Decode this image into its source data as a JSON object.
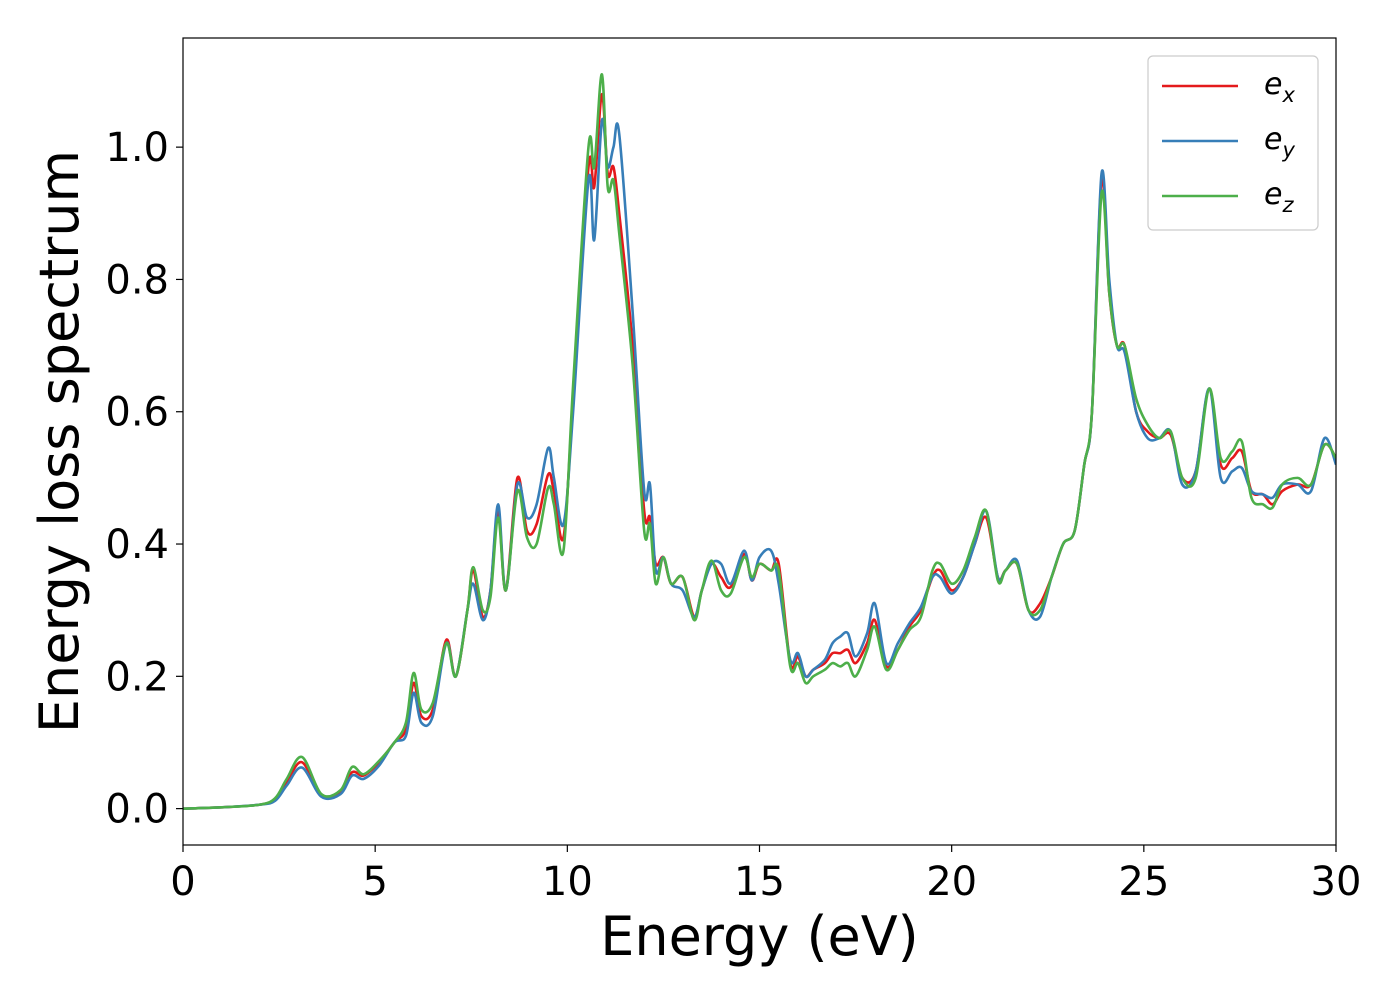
{
  "chart_data": {
    "type": "line",
    "title": "",
    "xlabel": "Energy (eV)",
    "ylabel": "Energy loss spectrum",
    "xlim": [
      0,
      30
    ],
    "ylim": [
      -0.055,
      1.165
    ],
    "xticks": [
      0,
      5,
      10,
      15,
      20,
      25,
      30
    ],
    "yticks": [
      0.0,
      0.2,
      0.4,
      0.6,
      0.8,
      1.0
    ],
    "xtick_labels": [
      "0",
      "5",
      "10",
      "15",
      "20",
      "25",
      "30"
    ],
    "ytick_labels": [
      "0.0",
      "0.2",
      "0.4",
      "0.6",
      "0.8",
      "1.0"
    ],
    "grid": false,
    "legend_position": "top-right",
    "series": [
      {
        "name": "e_x",
        "label_main": "e",
        "label_sub": "x",
        "color": "#e41a1c",
        "x": [
          0,
          1,
          2,
          2.4,
          2.7,
          3.1,
          3.6,
          4.1,
          4.4,
          4.7,
          5.1,
          5.5,
          5.8,
          6.0,
          6.2,
          6.5,
          6.85,
          7.1,
          7.4,
          7.55,
          7.8,
          8.0,
          8.2,
          8.4,
          8.7,
          8.95,
          9.2,
          9.5,
          9.65,
          9.9,
          10.15,
          10.55,
          10.7,
          10.9,
          11.05,
          11.2,
          11.35,
          11.7,
          12.0,
          12.15,
          12.3,
          12.5,
          12.7,
          13.0,
          13.3,
          13.5,
          13.75,
          14.0,
          14.25,
          14.6,
          14.8,
          15.0,
          15.3,
          15.5,
          15.8,
          16.0,
          16.2,
          16.4,
          16.7,
          16.9,
          17.1,
          17.3,
          17.5,
          17.8,
          18.0,
          18.3,
          18.6,
          18.9,
          19.2,
          19.5,
          19.7,
          20.0,
          20.3,
          20.6,
          20.9,
          21.2,
          21.4,
          21.7,
          22.0,
          22.3,
          22.6,
          22.9,
          23.2,
          23.45,
          23.65,
          23.9,
          24.1,
          24.3,
          24.5,
          24.8,
          25.1,
          25.4,
          25.7,
          26.0,
          26.35,
          26.7,
          27.0,
          27.3,
          27.55,
          27.8,
          28.1,
          28.35,
          28.6,
          29.0,
          29.35,
          29.7,
          30
        ],
        "y": [
          0,
          0.002,
          0.006,
          0.015,
          0.04,
          0.07,
          0.02,
          0.025,
          0.055,
          0.05,
          0.07,
          0.1,
          0.12,
          0.19,
          0.14,
          0.15,
          0.255,
          0.2,
          0.3,
          0.36,
          0.29,
          0.33,
          0.45,
          0.33,
          0.5,
          0.42,
          0.43,
          0.505,
          0.48,
          0.41,
          0.62,
          0.97,
          0.94,
          1.08,
          0.96,
          0.97,
          0.9,
          0.7,
          0.45,
          0.44,
          0.37,
          0.38,
          0.34,
          0.35,
          0.29,
          0.33,
          0.37,
          0.35,
          0.335,
          0.385,
          0.345,
          0.37,
          0.36,
          0.37,
          0.22,
          0.23,
          0.2,
          0.21,
          0.22,
          0.235,
          0.235,
          0.24,
          0.22,
          0.25,
          0.285,
          0.215,
          0.24,
          0.275,
          0.3,
          0.35,
          0.36,
          0.33,
          0.35,
          0.4,
          0.44,
          0.35,
          0.36,
          0.37,
          0.3,
          0.31,
          0.35,
          0.4,
          0.42,
          0.52,
          0.6,
          0.95,
          0.78,
          0.7,
          0.7,
          0.6,
          0.57,
          0.56,
          0.565,
          0.5,
          0.51,
          0.635,
          0.52,
          0.53,
          0.54,
          0.48,
          0.475,
          0.46,
          0.48,
          0.49,
          0.49,
          0.55,
          0.53
        ]
      },
      {
        "name": "e_y",
        "label_main": "e",
        "label_sub": "y",
        "color": "#377eb8",
        "x": [
          0,
          1,
          2,
          2.4,
          2.7,
          3.1,
          3.6,
          4.1,
          4.4,
          4.7,
          5.1,
          5.5,
          5.8,
          6.0,
          6.2,
          6.5,
          6.85,
          7.1,
          7.4,
          7.55,
          7.8,
          8.0,
          8.2,
          8.4,
          8.7,
          8.95,
          9.2,
          9.5,
          9.65,
          9.9,
          10.15,
          10.55,
          10.7,
          10.9,
          11.05,
          11.2,
          11.35,
          11.7,
          12.0,
          12.15,
          12.3,
          12.5,
          12.7,
          13.0,
          13.3,
          13.5,
          13.75,
          14.0,
          14.25,
          14.6,
          14.8,
          15.0,
          15.3,
          15.5,
          15.8,
          16.0,
          16.2,
          16.4,
          16.7,
          16.9,
          17.1,
          17.3,
          17.5,
          17.8,
          18.0,
          18.3,
          18.6,
          18.9,
          19.2,
          19.5,
          19.7,
          20.0,
          20.3,
          20.6,
          20.9,
          21.2,
          21.4,
          21.7,
          22.0,
          22.3,
          22.6,
          22.9,
          23.2,
          23.45,
          23.65,
          23.9,
          24.1,
          24.3,
          24.5,
          24.8,
          25.1,
          25.4,
          25.7,
          26.0,
          26.35,
          26.7,
          27.0,
          27.3,
          27.55,
          27.8,
          28.1,
          28.35,
          28.6,
          29.0,
          29.35,
          29.7,
          30
        ],
        "y": [
          0,
          0.002,
          0.006,
          0.012,
          0.035,
          0.062,
          0.018,
          0.022,
          0.05,
          0.045,
          0.065,
          0.1,
          0.11,
          0.175,
          0.13,
          0.14,
          0.25,
          0.2,
          0.3,
          0.34,
          0.285,
          0.33,
          0.46,
          0.33,
          0.49,
          0.44,
          0.46,
          0.545,
          0.5,
          0.43,
          0.6,
          0.95,
          0.86,
          1.04,
          0.97,
          1.0,
          1.02,
          0.75,
          0.48,
          0.49,
          0.36,
          0.38,
          0.34,
          0.33,
          0.29,
          0.33,
          0.37,
          0.37,
          0.34,
          0.39,
          0.345,
          0.38,
          0.39,
          0.34,
          0.225,
          0.235,
          0.2,
          0.21,
          0.225,
          0.25,
          0.26,
          0.265,
          0.23,
          0.265,
          0.31,
          0.22,
          0.25,
          0.28,
          0.305,
          0.35,
          0.35,
          0.325,
          0.35,
          0.4,
          0.45,
          0.35,
          0.36,
          0.375,
          0.3,
          0.29,
          0.35,
          0.4,
          0.42,
          0.52,
          0.6,
          0.96,
          0.8,
          0.7,
          0.69,
          0.6,
          0.56,
          0.56,
          0.57,
          0.49,
          0.51,
          0.635,
          0.5,
          0.51,
          0.515,
          0.48,
          0.475,
          0.47,
          0.49,
          0.49,
          0.48,
          0.56,
          0.52
        ]
      },
      {
        "name": "e_z",
        "label_main": "e",
        "label_sub": "z",
        "color": "#4daf4a",
        "x": [
          0,
          1,
          2,
          2.4,
          2.7,
          3.1,
          3.6,
          4.1,
          4.4,
          4.7,
          5.1,
          5.5,
          5.8,
          6.0,
          6.2,
          6.5,
          6.85,
          7.1,
          7.4,
          7.55,
          7.8,
          8.0,
          8.2,
          8.4,
          8.7,
          8.95,
          9.2,
          9.5,
          9.65,
          9.9,
          10.15,
          10.55,
          10.7,
          10.9,
          11.05,
          11.2,
          11.35,
          11.7,
          12.0,
          12.15,
          12.3,
          12.5,
          12.7,
          13.0,
          13.3,
          13.5,
          13.75,
          14.0,
          14.25,
          14.6,
          14.8,
          15.0,
          15.3,
          15.5,
          15.8,
          16.0,
          16.2,
          16.4,
          16.7,
          16.9,
          17.1,
          17.3,
          17.5,
          17.8,
          18.0,
          18.3,
          18.6,
          18.9,
          19.2,
          19.5,
          19.7,
          20.0,
          20.3,
          20.6,
          20.9,
          21.2,
          21.4,
          21.7,
          22.0,
          22.3,
          22.6,
          22.9,
          23.2,
          23.45,
          23.65,
          23.9,
          24.1,
          24.3,
          24.5,
          24.8,
          25.1,
          25.4,
          25.7,
          26.0,
          26.35,
          26.7,
          27.0,
          27.3,
          27.55,
          27.8,
          28.1,
          28.35,
          28.6,
          29.0,
          29.35,
          29.7,
          30
        ],
        "y": [
          0,
          0.002,
          0.006,
          0.016,
          0.045,
          0.078,
          0.022,
          0.028,
          0.063,
          0.052,
          0.072,
          0.1,
          0.13,
          0.205,
          0.15,
          0.16,
          0.25,
          0.2,
          0.3,
          0.365,
          0.3,
          0.32,
          0.44,
          0.33,
          0.48,
          0.41,
          0.4,
          0.485,
          0.46,
          0.39,
          0.64,
          1.0,
          0.97,
          1.11,
          0.94,
          0.95,
          0.87,
          0.67,
          0.42,
          0.43,
          0.34,
          0.38,
          0.34,
          0.35,
          0.285,
          0.33,
          0.375,
          0.33,
          0.325,
          0.38,
          0.35,
          0.37,
          0.36,
          0.36,
          0.215,
          0.22,
          0.19,
          0.2,
          0.21,
          0.22,
          0.215,
          0.22,
          0.2,
          0.24,
          0.275,
          0.21,
          0.24,
          0.27,
          0.29,
          0.36,
          0.37,
          0.34,
          0.36,
          0.41,
          0.45,
          0.345,
          0.36,
          0.37,
          0.3,
          0.3,
          0.35,
          0.4,
          0.42,
          0.52,
          0.6,
          0.93,
          0.78,
          0.7,
          0.7,
          0.62,
          0.58,
          0.56,
          0.57,
          0.5,
          0.5,
          0.635,
          0.53,
          0.54,
          0.555,
          0.47,
          0.46,
          0.455,
          0.49,
          0.5,
          0.49,
          0.55,
          0.53
        ]
      }
    ]
  }
}
